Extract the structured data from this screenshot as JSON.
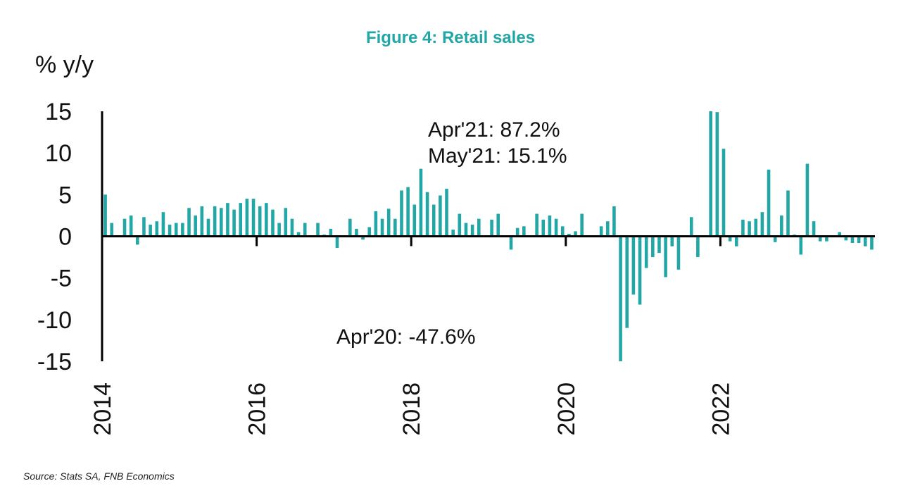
{
  "chart_data": {
    "type": "bar",
    "title": "Figure 4: Retail sales",
    "ylabel": "% y/y",
    "xlabel": "",
    "ylim": [
      -15,
      15
    ],
    "yticks": [
      15,
      10,
      5,
      0,
      -5,
      -10,
      -15
    ],
    "year_labels": [
      "2014",
      "2016",
      "2018",
      "2020",
      "2022"
    ],
    "start": "2014-01",
    "bar_color": "#22a6a6",
    "series": [
      {
        "name": "Retail sales % y/y",
        "values": [
          5.0,
          1.6,
          0.0,
          2.1,
          2.5,
          -1.0,
          2.3,
          1.4,
          1.8,
          2.9,
          1.4,
          1.6,
          1.6,
          3.4,
          2.5,
          3.6,
          2.1,
          3.6,
          3.4,
          4.0,
          3.2,
          4.0,
          4.5,
          4.5,
          3.6,
          4.0,
          3.2,
          1.6,
          3.4,
          2.1,
          0.5,
          1.6,
          0.0,
          1.6,
          0.2,
          0.9,
          -1.4,
          0.0,
          2.1,
          0.9,
          -0.4,
          1.1,
          3.0,
          2.1,
          3.3,
          2.1,
          5.5,
          5.9,
          3.8,
          8.1,
          5.3,
          3.8,
          4.9,
          5.7,
          0.8,
          2.7,
          1.6,
          1.4,
          2.1,
          0.0,
          2.0,
          2.7,
          0.0,
          -1.6,
          1.0,
          1.2,
          0.0,
          2.7,
          2.0,
          2.5,
          2.1,
          1.2,
          0.3,
          0.6,
          2.7,
          0.0,
          0.0,
          1.2,
          1.8,
          3.6,
          -15.0,
          -11.0,
          -7.0,
          -8.2,
          -3.8,
          -2.5,
          -2.0,
          -4.9,
          -1.2,
          -4.0,
          0.0,
          2.3,
          -2.5,
          0.0,
          15.0,
          14.9,
          10.5,
          -0.6,
          -1.2,
          2.0,
          1.8,
          2.1,
          2.9,
          8.0,
          -0.7,
          2.5,
          5.5,
          0.2,
          -2.2,
          8.7,
          1.8,
          -0.6,
          -0.6,
          0.0,
          0.5,
          -0.5,
          -0.8,
          -0.8,
          -1.2,
          -1.6
        ]
      }
    ],
    "annotations": [
      {
        "text": "Apr'21: 87.2%"
      },
      {
        "text": "May'21: 15.1%"
      },
      {
        "text": "Apr'20: -47.6%"
      }
    ],
    "source": "Source: Stats SA, FNB Economics"
  }
}
